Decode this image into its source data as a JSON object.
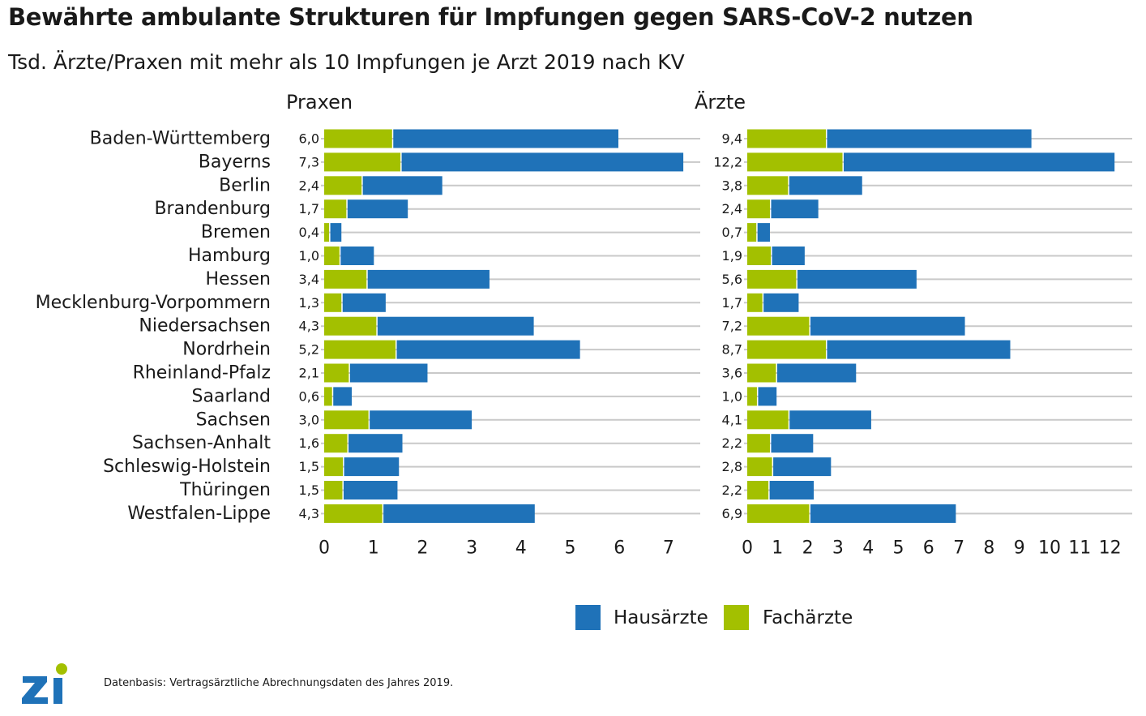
{
  "title": "Bewährte ambulante Strukturen für Impfungen gegen SARS-CoV-2 nutzen",
  "subtitle": "Tsd. Ärzte/Praxen mit mehr als 10 Impfungen je Arzt 2019 nach KV",
  "source": "Datenbasis: Vertragsärztliche Abrechnungsdaten des Jahres 2019.",
  "logo_text": "Zi",
  "colors": {
    "hausaerzte": "#1f72b8",
    "fachaerzte": "#a3c000",
    "gridline": "#c9c9c9",
    "text": "#1a1a1a"
  },
  "chart_data": {
    "type": "bar",
    "orientation": "horizontal",
    "stacked": true,
    "categories": [
      "Baden-Württemberg",
      "Bayerns",
      "Berlin",
      "Brandenburg",
      "Bremen",
      "Hamburg",
      "Hessen",
      "Mecklenburg-Vorpommern",
      "Niedersachsen",
      "Nordrhein",
      "Rheinland-Pfalz",
      "Saarland",
      "Sachsen",
      "Sachsen-Anhalt",
      "Schleswig-Holstein",
      "Thüringen",
      "Westfalen-Lippe"
    ],
    "legend": {
      "position": "bottom",
      "entries": [
        "Hausärzte",
        "Fachärzte"
      ]
    },
    "panels": [
      {
        "title": "Praxen",
        "xlim": [
          0,
          7.5
        ],
        "ticks": [
          0,
          1,
          2,
          3,
          4,
          5,
          6,
          7
        ],
        "total_labels": [
          "6,0",
          "7,3",
          "2,4",
          "1,7",
          "0,4",
          "1,0",
          "3,4",
          "1,3",
          "4,3",
          "5,2",
          "2,1",
          "0,6",
          "3,0",
          "1,6",
          "1,5",
          "1,5",
          "4,3"
        ],
        "series": [
          {
            "name": "Fachärzte",
            "values": [
              1.38,
              1.55,
              0.76,
              0.45,
              0.1,
              0.31,
              0.86,
              0.35,
              1.06,
              1.45,
              0.5,
              0.16,
              0.9,
              0.47,
              0.38,
              0.37,
              1.18
            ]
          },
          {
            "name": "Hausärzte",
            "values": [
              4.6,
              5.75,
              1.64,
              1.25,
              0.25,
              0.7,
              2.5,
              0.9,
              3.2,
              3.75,
              1.6,
              0.4,
              2.1,
              1.12,
              1.14,
              1.12,
              3.1
            ]
          }
        ]
      },
      {
        "title": "Ärzte",
        "xlim": [
          0,
          12.6
        ],
        "ticks": [
          0,
          1,
          2,
          3,
          4,
          5,
          6,
          7,
          8,
          9,
          10,
          11,
          12
        ],
        "total_labels": [
          "9,4",
          "12,2",
          "3,8",
          "2,4",
          "0,7",
          "1,9",
          "5,6",
          "1,7",
          "7,2",
          "8,7",
          "3,6",
          "1,0",
          "4,1",
          "2,2",
          "2,8",
          "2,2",
          "6,9"
        ],
        "series": [
          {
            "name": "Fachärzte",
            "values": [
              2.6,
              3.15,
              1.35,
              0.75,
              0.3,
              0.78,
              1.62,
              0.5,
              2.05,
              2.6,
              0.95,
              0.32,
              1.36,
              0.75,
              0.82,
              0.7,
              2.05
            ]
          },
          {
            "name": "Hausärzte",
            "values": [
              6.8,
              9.0,
              2.45,
              1.6,
              0.45,
              1.12,
              3.98,
              1.2,
              5.15,
              6.1,
              2.65,
              0.65,
              2.74,
              1.43,
              1.95,
              1.5,
              4.85
            ]
          }
        ]
      }
    ]
  }
}
